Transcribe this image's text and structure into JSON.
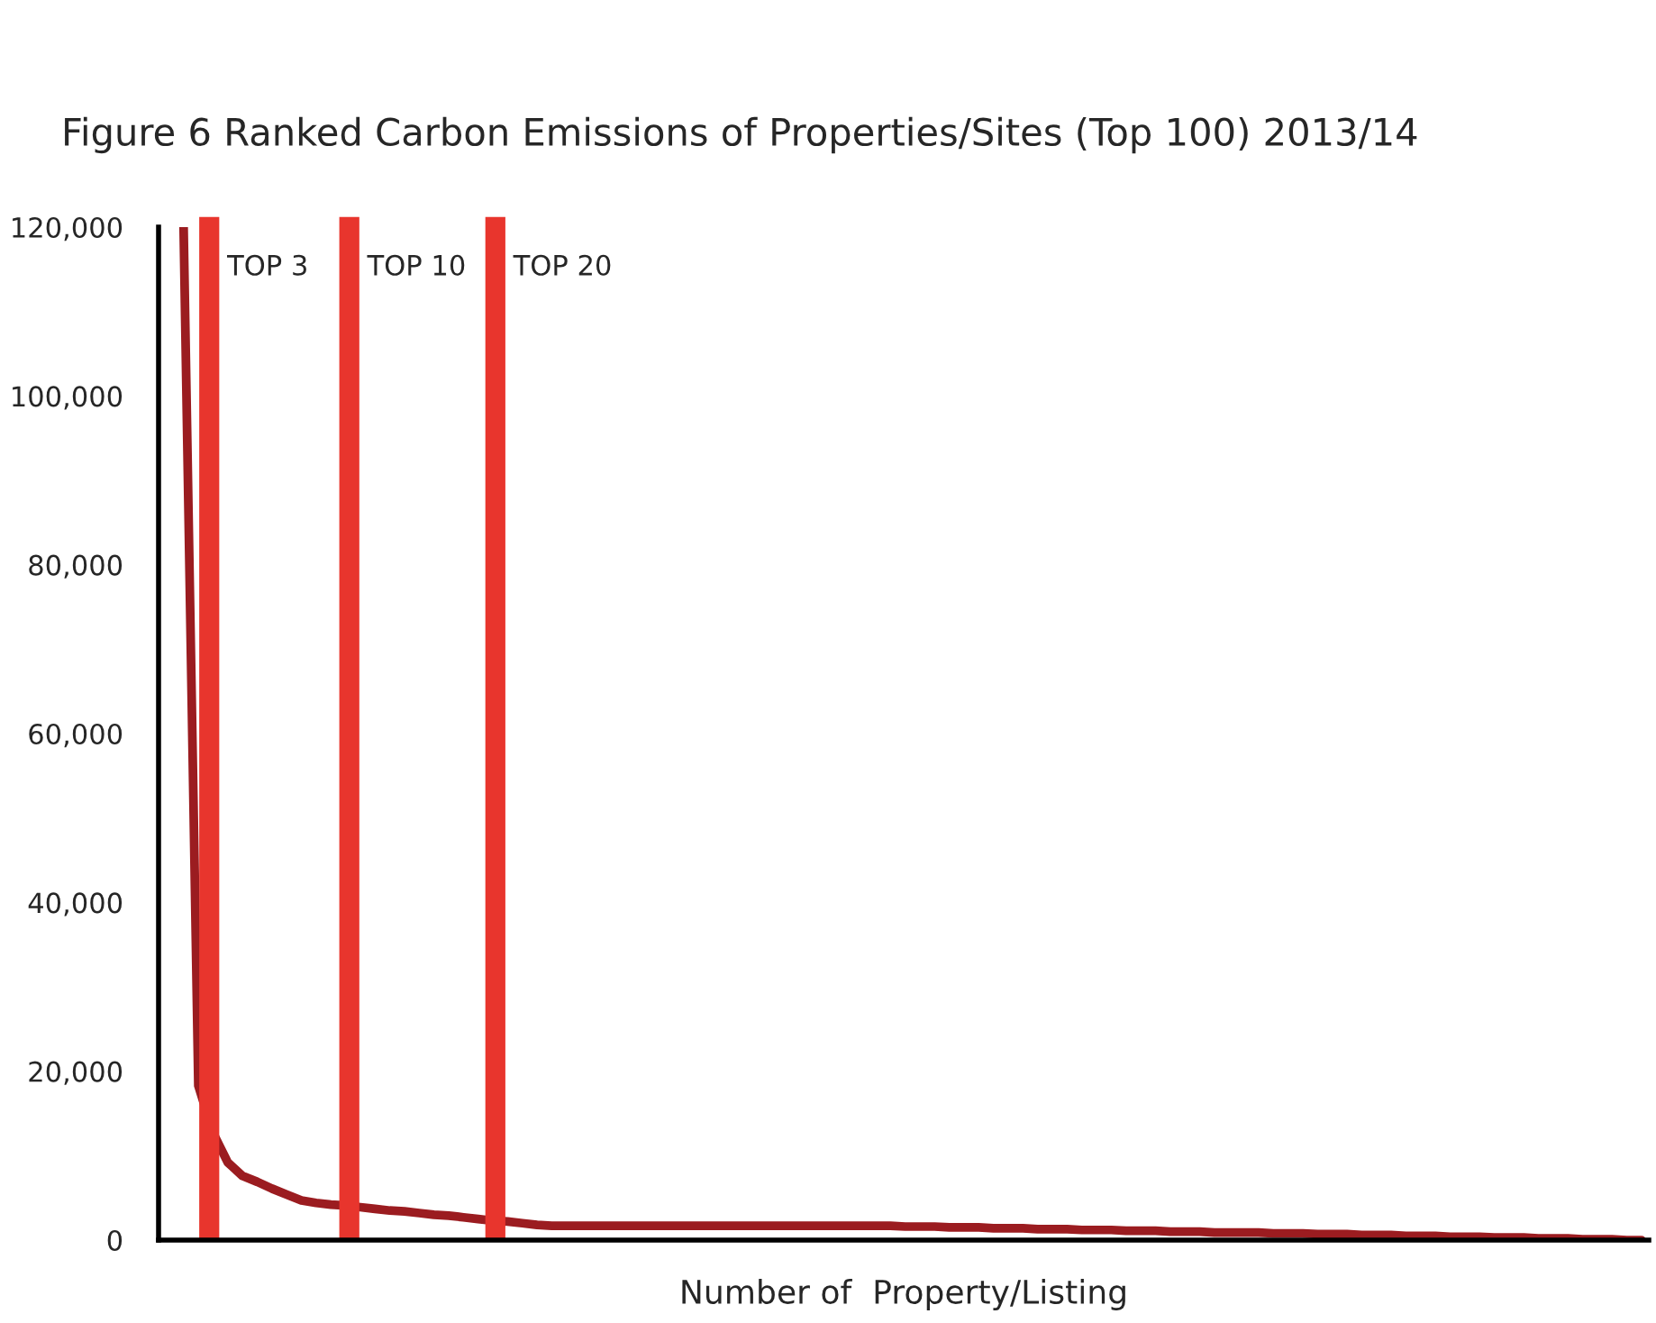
{
  "chart_data": {
    "type": "line",
    "title": "Figure 6 Ranked Carbon Emissions of Properties/Sites (Top 100) 2013/14",
    "xlabel": "Number of  Property/Listing",
    "categories": [
      null,
      null,
      null,
      null,
      null,
      null,
      null,
      null,
      null,
      null,
      null,
      null,
      null,
      null,
      null,
      null,
      null,
      null,
      null,
      null,
      null,
      null,
      null,
      null,
      null,
      null,
      null,
      null,
      null,
      null,
      null,
      null,
      null,
      null,
      null,
      null,
      null,
      null,
      null,
      null,
      null,
      null,
      null,
      null,
      null,
      null,
      null,
      null,
      null,
      null,
      null,
      null,
      null,
      null,
      null,
      null,
      null,
      null,
      null,
      null,
      null,
      null,
      null,
      null,
      null,
      null,
      null,
      null,
      null,
      null,
      null,
      null,
      null,
      null,
      null,
      null,
      null,
      null,
      null,
      null,
      null,
      null,
      null,
      null,
      null,
      null,
      null,
      null,
      null,
      null,
      null,
      null,
      null,
      null,
      null,
      null,
      null,
      null,
      null,
      null
    ],
    "series": [
      {
        "color": "#9b1c20",
        "values": [
          120000,
          18300,
          12700,
          9200,
          7600,
          6900,
          6100,
          5400,
          4700,
          4400,
          4200,
          4100,
          3900,
          3700,
          3500,
          3400,
          3200,
          3000,
          2900,
          2700,
          2500,
          2300,
          2200,
          2000,
          1800,
          1700,
          1700,
          1700,
          1700,
          1700,
          1700,
          1700,
          1700,
          1700,
          1700,
          1700,
          1700,
          1700,
          1700,
          1700,
          1700,
          1700,
          1700,
          1700,
          1700,
          1700,
          1700,
          1700,
          1700,
          1600,
          1600,
          1600,
          1500,
          1500,
          1500,
          1400,
          1400,
          1400,
          1300,
          1300,
          1300,
          1200,
          1200,
          1200,
          1100,
          1100,
          1100,
          1000,
          1000,
          1000,
          900,
          900,
          900,
          900,
          800,
          800,
          800,
          700,
          700,
          700,
          600,
          600,
          600,
          500,
          500,
          500,
          400,
          400,
          400,
          300,
          300,
          300,
          200,
          200,
          200,
          100,
          100,
          100,
          0,
          0
        ]
      }
    ],
    "ylim": [
      0,
      120000
    ],
    "yticks": [
      {
        "value": 0,
        "label": "0"
      },
      {
        "value": 20000,
        "label": "20,000"
      },
      {
        "value": 40000,
        "label": "40,000"
      },
      {
        "value": 60000,
        "label": "60,000"
      },
      {
        "value": 80000,
        "label": "80,000"
      },
      {
        "value": 100000,
        "label": "100,000"
      },
      {
        "value": 120000,
        "label": "120,000"
      }
    ],
    "annotations": [
      "TOP 3",
      "TOP 10",
      "TOP 20"
    ],
    "grid": false,
    "legend": false,
    "marker": "none",
    "line_style": "solid"
  }
}
